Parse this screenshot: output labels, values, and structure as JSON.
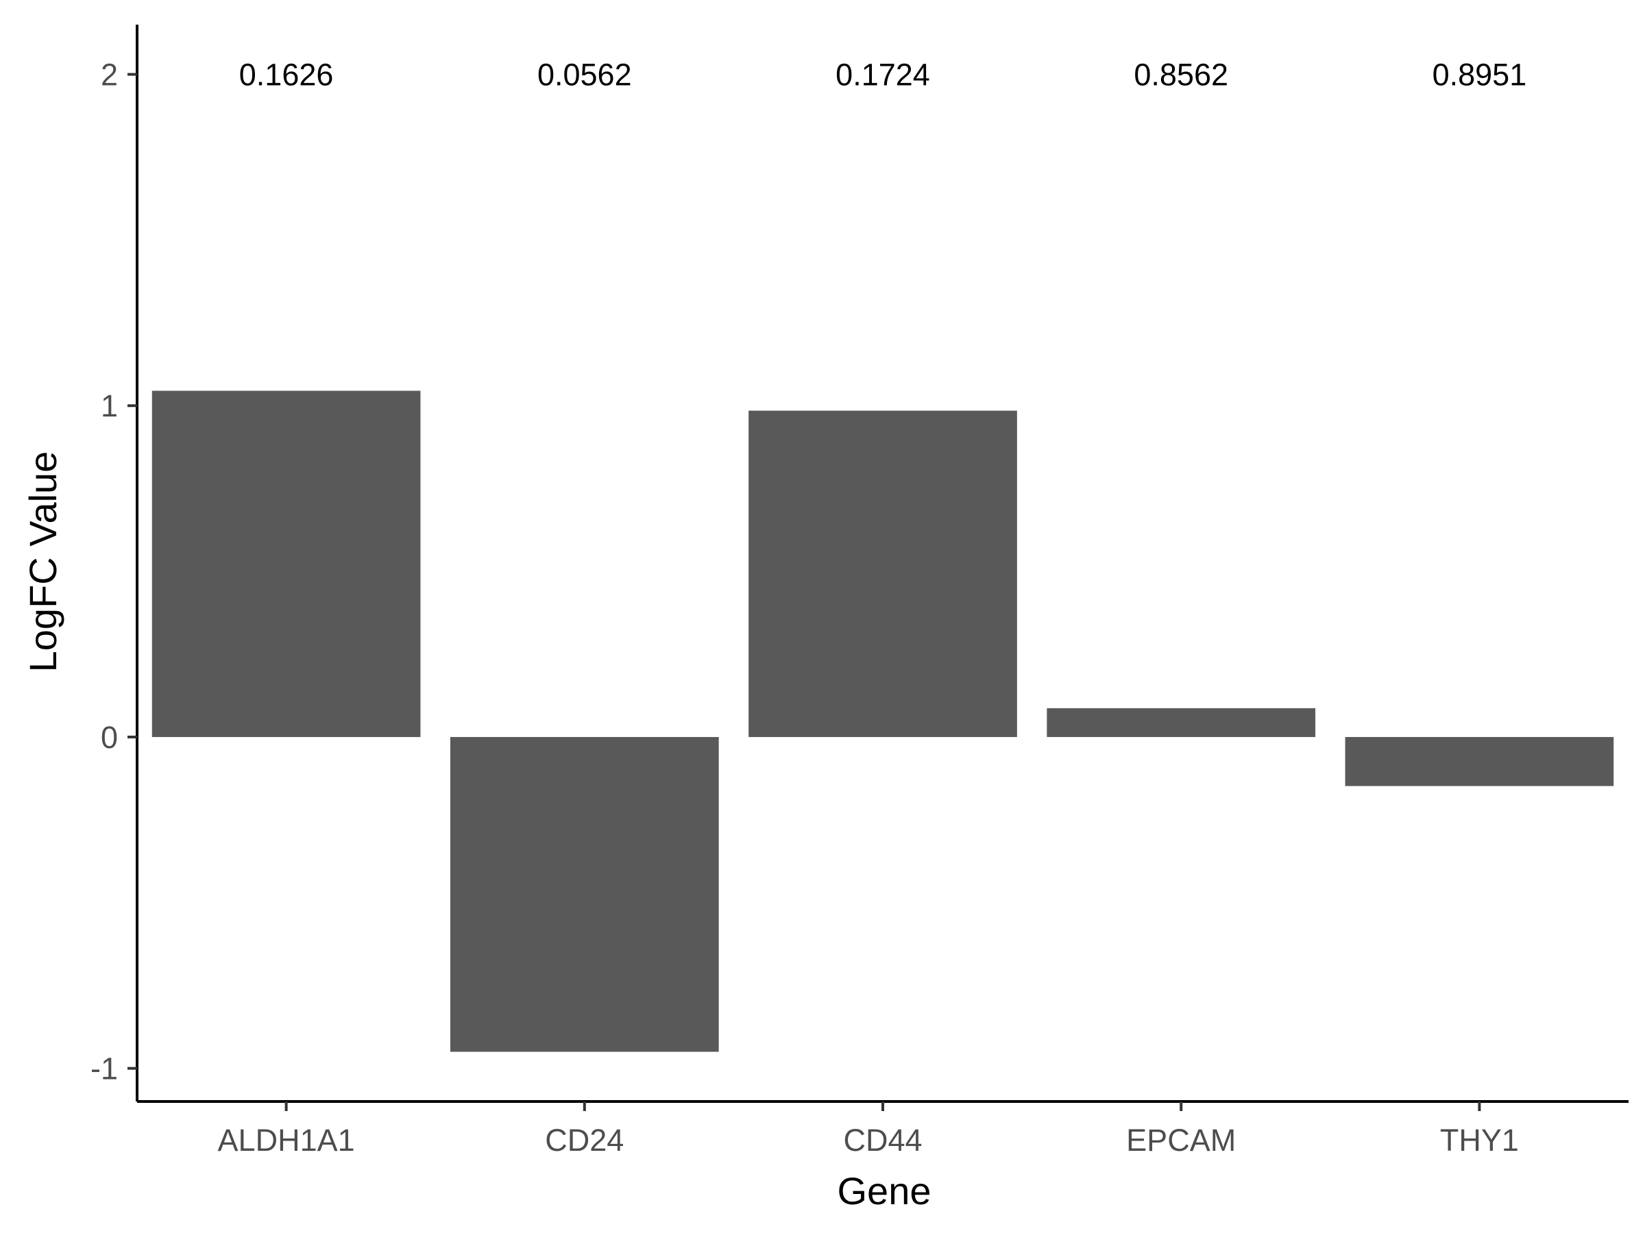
{
  "chart_data": {
    "type": "bar",
    "title": "",
    "xlabel": "Gene",
    "ylabel": "LogFC Value",
    "categories": [
      "ALDH1A1",
      "CD24",
      "CD44",
      "EPCAM",
      "THY1"
    ],
    "values": [
      1.045,
      -0.95,
      0.985,
      0.087,
      -0.148
    ],
    "annotations": [
      "0.1626",
      "0.0562",
      "0.1724",
      "0.8562",
      "0.8951"
    ],
    "yticks": [
      -1,
      0,
      1,
      2
    ],
    "yticklabels": [
      "-1",
      "0",
      "1",
      "2"
    ],
    "ylim": [
      -1.1,
      2.15
    ],
    "annotation_y": 2,
    "grid": false,
    "legend": "none",
    "bar_color": "#595959"
  }
}
